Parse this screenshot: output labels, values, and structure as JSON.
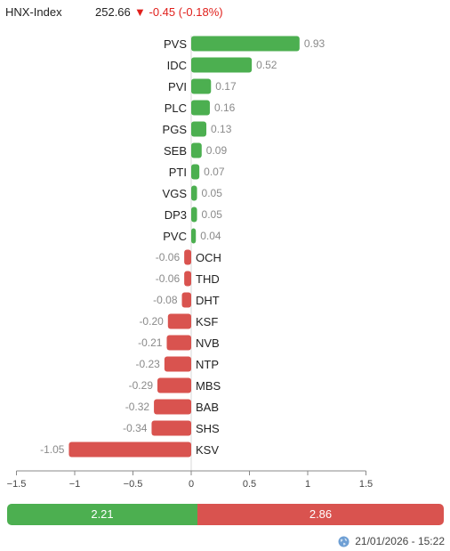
{
  "header": {
    "index_name": "HNX-Index",
    "index_value": "252.66",
    "change_arrow": "▼",
    "change_text": "-0.45 (-0.18%)",
    "change_color": "#e0201c"
  },
  "chart_data": {
    "type": "bar",
    "orientation": "horizontal",
    "categories": [
      "PVS",
      "IDC",
      "PVI",
      "PLC",
      "PGS",
      "SEB",
      "PTI",
      "VGS",
      "DP3",
      "PVC",
      "OCH",
      "THD",
      "DHT",
      "KSF",
      "NVB",
      "NTP",
      "MBS",
      "BAB",
      "SHS",
      "KSV"
    ],
    "values": [
      0.93,
      0.52,
      0.17,
      0.16,
      0.13,
      0.09,
      0.07,
      0.05,
      0.05,
      0.04,
      -0.06,
      -0.06,
      -0.08,
      -0.2,
      -0.21,
      -0.23,
      -0.29,
      -0.32,
      -0.34,
      -1.05
    ],
    "value_labels": [
      "0.93",
      "0.52",
      "0.17",
      "0.16",
      "0.13",
      "0.09",
      "0.07",
      "0.05",
      "0.05",
      "0.04",
      "-0.06",
      "-0.06",
      "-0.08",
      "-0.20",
      "-0.21",
      "-0.23",
      "-0.29",
      "-0.32",
      "-0.34",
      "-1.05"
    ],
    "xlim": [
      -1.5,
      1.5
    ],
    "ticks": [
      -1.5,
      -1,
      -0.5,
      0,
      0.5,
      1,
      1.5
    ],
    "tick_labels": [
      "−1.5",
      "−1",
      "−0.5",
      "0",
      "0.5",
      "1",
      "1.5"
    ],
    "positive_color": "#4caf50",
    "negative_color": "#d9534f",
    "grid": false
  },
  "summary": {
    "positive_total": 2.21,
    "positive_label": "2.21",
    "negative_total": 2.86,
    "negative_label": "2.86"
  },
  "footer": {
    "timestamp": "21/01/2026 - 15:22",
    "icon": "globe-icon"
  }
}
